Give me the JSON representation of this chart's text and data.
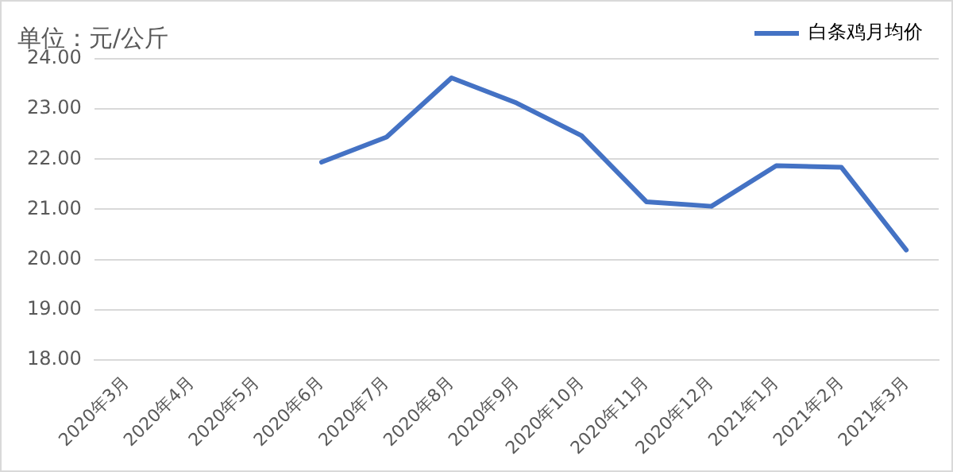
{
  "chart_data": {
    "type": "line",
    "ylabel": "单位：元/公斤",
    "categories": [
      "2020年3月",
      "2020年4月",
      "2020年5月",
      "2020年6月",
      "2020年7月",
      "2020年8月",
      "2020年9月",
      "2020年10月",
      "2020年11月",
      "2020年12月",
      "2021年1月",
      "2021年2月",
      "2021年3月"
    ],
    "series": [
      {
        "name": "白条鸡月均价",
        "color": "#4472c4",
        "values": [
          null,
          null,
          null,
          21.94,
          22.44,
          23.62,
          23.12,
          22.47,
          21.15,
          21.06,
          21.87,
          21.84,
          20.19
        ]
      }
    ],
    "ylim": [
      18,
      24
    ],
    "yticks": [
      {
        "value": 18,
        "label": "18.00"
      },
      {
        "value": 19,
        "label": "19.00"
      },
      {
        "value": 20,
        "label": "20.00"
      },
      {
        "value": 21,
        "label": "21.00"
      },
      {
        "value": 22,
        "label": "22.00"
      },
      {
        "value": 23,
        "label": "23.00"
      },
      {
        "value": 24,
        "label": "24.00"
      }
    ],
    "grid": "y",
    "legend": "top right",
    "marker": "none",
    "line_style": "solid"
  }
}
